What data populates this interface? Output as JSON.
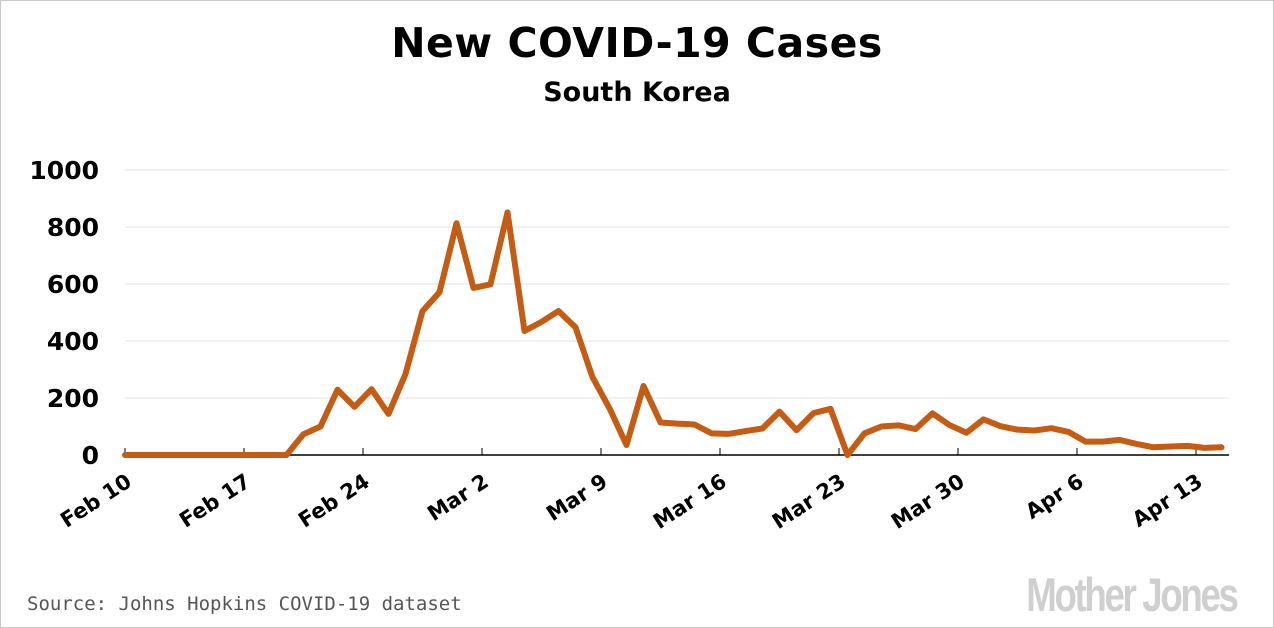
{
  "chart_data": {
    "type": "line",
    "title": "New COVID-19 Cases",
    "subtitle": "South Korea",
    "xlabel": "",
    "ylabel": "",
    "ylim": [
      0,
      1000
    ],
    "yticks": [
      "0",
      "200",
      "400",
      "600",
      "800",
      "1000"
    ],
    "xlim": [
      "2020-02-10",
      "2020-04-14"
    ],
    "xticks": [
      {
        "date": "2020-02-10",
        "label": "Feb 10"
      },
      {
        "date": "2020-02-17",
        "label": "Feb 17"
      },
      {
        "date": "2020-02-24",
        "label": "Feb 24"
      },
      {
        "date": "2020-03-02",
        "label": "Mar 2"
      },
      {
        "date": "2020-03-09",
        "label": "Mar 9"
      },
      {
        "date": "2020-03-16",
        "label": "Mar 16"
      },
      {
        "date": "2020-03-23",
        "label": "Mar 23"
      },
      {
        "date": "2020-03-30",
        "label": "Mar 30"
      },
      {
        "date": "2020-04-06",
        "label": "Apr 6"
      },
      {
        "date": "2020-04-13",
        "label": "Apr 13"
      }
    ],
    "grid": true,
    "line_color": "#c45c14",
    "start_date": "2020-02-10",
    "values": [
      0,
      0,
      0,
      0,
      0,
      0,
      0,
      0,
      0,
      0,
      73,
      100,
      229,
      169,
      231,
      144,
      284,
      505,
      571,
      813,
      586,
      599,
      851,
      435,
      467,
      505,
      448,
      273,
      164,
      35,
      242,
      114,
      110,
      107,
      76,
      74,
      84,
      93,
      152,
      87,
      147,
      162,
      0,
      76,
      100,
      104,
      91,
      146,
      105,
      78,
      125,
      101,
      89,
      86,
      94,
      81,
      47,
      47,
      53,
      39,
      27,
      30,
      32,
      25,
      27
    ]
  },
  "footer": {
    "source": "Source: Johns Hopkins COVID-19 dataset",
    "logo": "Mother Jones"
  }
}
